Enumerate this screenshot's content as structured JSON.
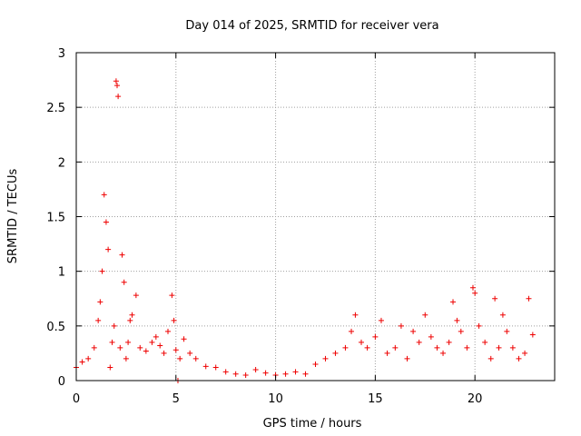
{
  "chart_data": {
    "type": "scatter",
    "title": "Day 014 of 2025, SRMTID for receiver vera",
    "xlabel": "GPS time / hours",
    "ylabel": "SRMTID / TECUs",
    "xlim": [
      0,
      24
    ],
    "ylim": [
      0,
      3
    ],
    "xticks": [
      0,
      5,
      10,
      15,
      20
    ],
    "xtick_labels": [
      "0",
      "5",
      "10",
      "15",
      "20"
    ],
    "yticks": [
      0,
      0.5,
      1,
      1.5,
      2,
      2.5,
      3
    ],
    "ytick_labels": [
      "0",
      "0.5",
      "1",
      "1.5",
      "2",
      "2.5",
      "3"
    ],
    "grid": true,
    "marker": "+",
    "color": "#ee0000",
    "series": [
      {
        "name": "SRMTID",
        "x": [
          0.0,
          0.3,
          0.6,
          0.9,
          1.1,
          1.2,
          1.3,
          1.4,
          1.5,
          1.6,
          1.7,
          1.8,
          1.9,
          2.0,
          2.05,
          2.1,
          2.2,
          2.3,
          2.4,
          2.5,
          2.6,
          2.7,
          2.8,
          3.0,
          3.2,
          3.5,
          3.8,
          4.0,
          4.2,
          4.4,
          4.6,
          4.8,
          4.9,
          5.0,
          5.1,
          5.2,
          5.4,
          5.7,
          6.0,
          6.5,
          7.0,
          7.5,
          8.0,
          8.5,
          9.0,
          9.5,
          10.0,
          10.5,
          11.0,
          11.5,
          12.0,
          12.5,
          13.0,
          13.5,
          13.8,
          14.0,
          14.3,
          14.6,
          15.0,
          15.3,
          15.6,
          16.0,
          16.3,
          16.6,
          16.9,
          17.2,
          17.5,
          17.8,
          18.1,
          18.4,
          18.7,
          18.9,
          19.1,
          19.3,
          19.6,
          19.9,
          20.0,
          20.2,
          20.5,
          20.8,
          21.0,
          21.2,
          21.4,
          21.6,
          21.9,
          22.2,
          22.5,
          22.7,
          22.9
        ],
        "y": [
          0.12,
          0.17,
          0.2,
          0.3,
          0.55,
          0.72,
          1.0,
          1.7,
          1.45,
          1.2,
          0.12,
          0.35,
          0.5,
          2.74,
          2.7,
          2.6,
          0.3,
          1.15,
          0.9,
          0.2,
          0.35,
          0.55,
          0.6,
          0.78,
          0.3,
          0.27,
          0.35,
          0.4,
          0.32,
          0.25,
          0.45,
          0.78,
          0.55,
          0.28,
          0.0,
          0.2,
          0.38,
          0.25,
          0.2,
          0.13,
          0.12,
          0.08,
          0.06,
          0.05,
          0.1,
          0.07,
          0.05,
          0.06,
          0.08,
          0.06,
          0.15,
          0.2,
          0.25,
          0.3,
          0.45,
          0.6,
          0.35,
          0.3,
          0.4,
          0.55,
          0.25,
          0.3,
          0.5,
          0.2,
          0.45,
          0.35,
          0.6,
          0.4,
          0.3,
          0.25,
          0.35,
          0.72,
          0.55,
          0.45,
          0.3,
          0.85,
          0.8,
          0.5,
          0.35,
          0.2,
          0.75,
          0.3,
          0.6,
          0.45,
          0.3,
          0.2,
          0.25,
          0.75,
          0.42
        ]
      }
    ]
  }
}
